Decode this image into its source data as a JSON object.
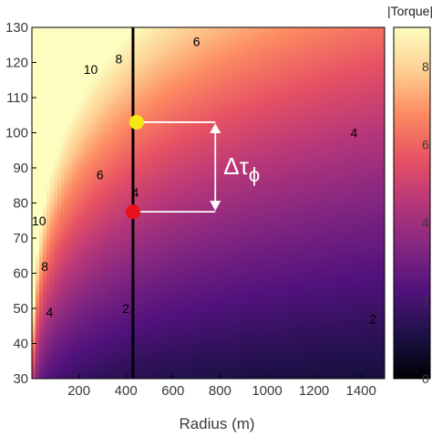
{
  "chart_data": {
    "type": "heatmap",
    "title": "",
    "xlabel": "Radius (m)",
    "ylabel": "",
    "xlim": [
      0,
      1500
    ],
    "ylim": [
      30,
      130
    ],
    "x_ticks": [
      200,
      400,
      600,
      800,
      1000,
      1200,
      1400
    ],
    "y_ticks": [
      30,
      40,
      50,
      60,
      70,
      80,
      90,
      100,
      110,
      120,
      130
    ],
    "grid": false,
    "colorbar": {
      "label": "|Torque| (N",
      "ticks": [
        0,
        2,
        4,
        6,
        8
      ],
      "range": [
        0,
        9
      ],
      "colormap": [
        "#000004",
        "#1d1147",
        "#51127c",
        "#832681",
        "#b73779",
        "#e75263",
        "#fc8961",
        "#fecf92",
        "#fcfdbf"
      ]
    },
    "contour_levels": [
      2,
      4,
      6,
      8,
      10
    ],
    "contour_labels": [
      {
        "text": "2",
        "x": 400,
        "y": 50
      },
      {
        "text": "2",
        "x": 1450,
        "y": 47
      },
      {
        "text": "4",
        "x": 75,
        "y": 49
      },
      {
        "text": "4",
        "x": 440,
        "y": 83
      },
      {
        "text": "4",
        "x": 1370,
        "y": 100
      },
      {
        "text": "6",
        "x": 290,
        "y": 88
      },
      {
        "text": "6",
        "x": 700,
        "y": 126
      },
      {
        "text": "8",
        "x": 55,
        "y": 62
      },
      {
        "text": "8",
        "x": 370,
        "y": 121
      },
      {
        "text": "10",
        "x": 30,
        "y": 75
      },
      {
        "text": "10",
        "x": 250,
        "y": 118
      }
    ],
    "vertical_line": {
      "x": 430
    },
    "markers": [
      {
        "name": "upper",
        "x": 445,
        "y": 103,
        "color": "#f5e616"
      },
      {
        "name": "lower",
        "x": 430,
        "y": 77.5,
        "color": "#e8111b"
      }
    ],
    "annotation": {
      "text": "Δτ",
      "subscript": "ϕ",
      "y_top": 103,
      "y_bottom": 77.5,
      "x": 780
    }
  }
}
